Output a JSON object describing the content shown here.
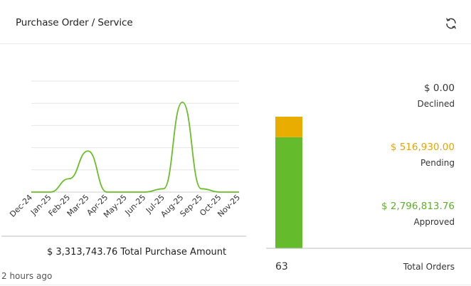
{
  "header": {
    "title": "Purchase Order / Service",
    "refresh_icon": "refresh-icon"
  },
  "chart_data": [
    {
      "type": "line",
      "categories": [
        "Dec-24",
        "Jan-25",
        "Feb-25",
        "Mar-25",
        "Apr-25",
        "May-25",
        "Jun-25",
        "Jul-25",
        "Aug-25",
        "Sep-25",
        "Oct-25",
        "Nov-25"
      ],
      "values": [
        0,
        0,
        0.6,
        1.85,
        0,
        0,
        0,
        0.15,
        4.05,
        0.15,
        0,
        0
      ],
      "color": "#6cbd2a",
      "grid": true,
      "ylim": [
        0,
        5
      ],
      "title": "",
      "xlabel": "",
      "ylabel": ""
    },
    {
      "type": "bar",
      "stacked": true,
      "categories": [
        "Total Orders"
      ],
      "series": [
        {
          "name": "Approved",
          "values": [
            2796813.76
          ],
          "color": "#64bb2b"
        },
        {
          "name": "Pending",
          "values": [
            516930.0
          ],
          "color": "#e9ad00"
        },
        {
          "name": "Declined",
          "values": [
            0.0
          ],
          "color": "#2b2b2b"
        }
      ]
    }
  ],
  "summary": {
    "total_amount": "$ 3,313,743.76",
    "total_label": "Total Purchase Amount",
    "updated": "2 hours ago"
  },
  "status": {
    "declined_value": "$ 0.00",
    "declined_label": "Declined",
    "pending_value": "$ 516,930.00",
    "pending_label": "Pending",
    "approved_value": "$ 2,796,813.76",
    "approved_label": "Approved",
    "pending_color": "#e9a600",
    "approved_color": "#5fae2d"
  },
  "orders": {
    "count": "63",
    "label": "Total Orders"
  }
}
